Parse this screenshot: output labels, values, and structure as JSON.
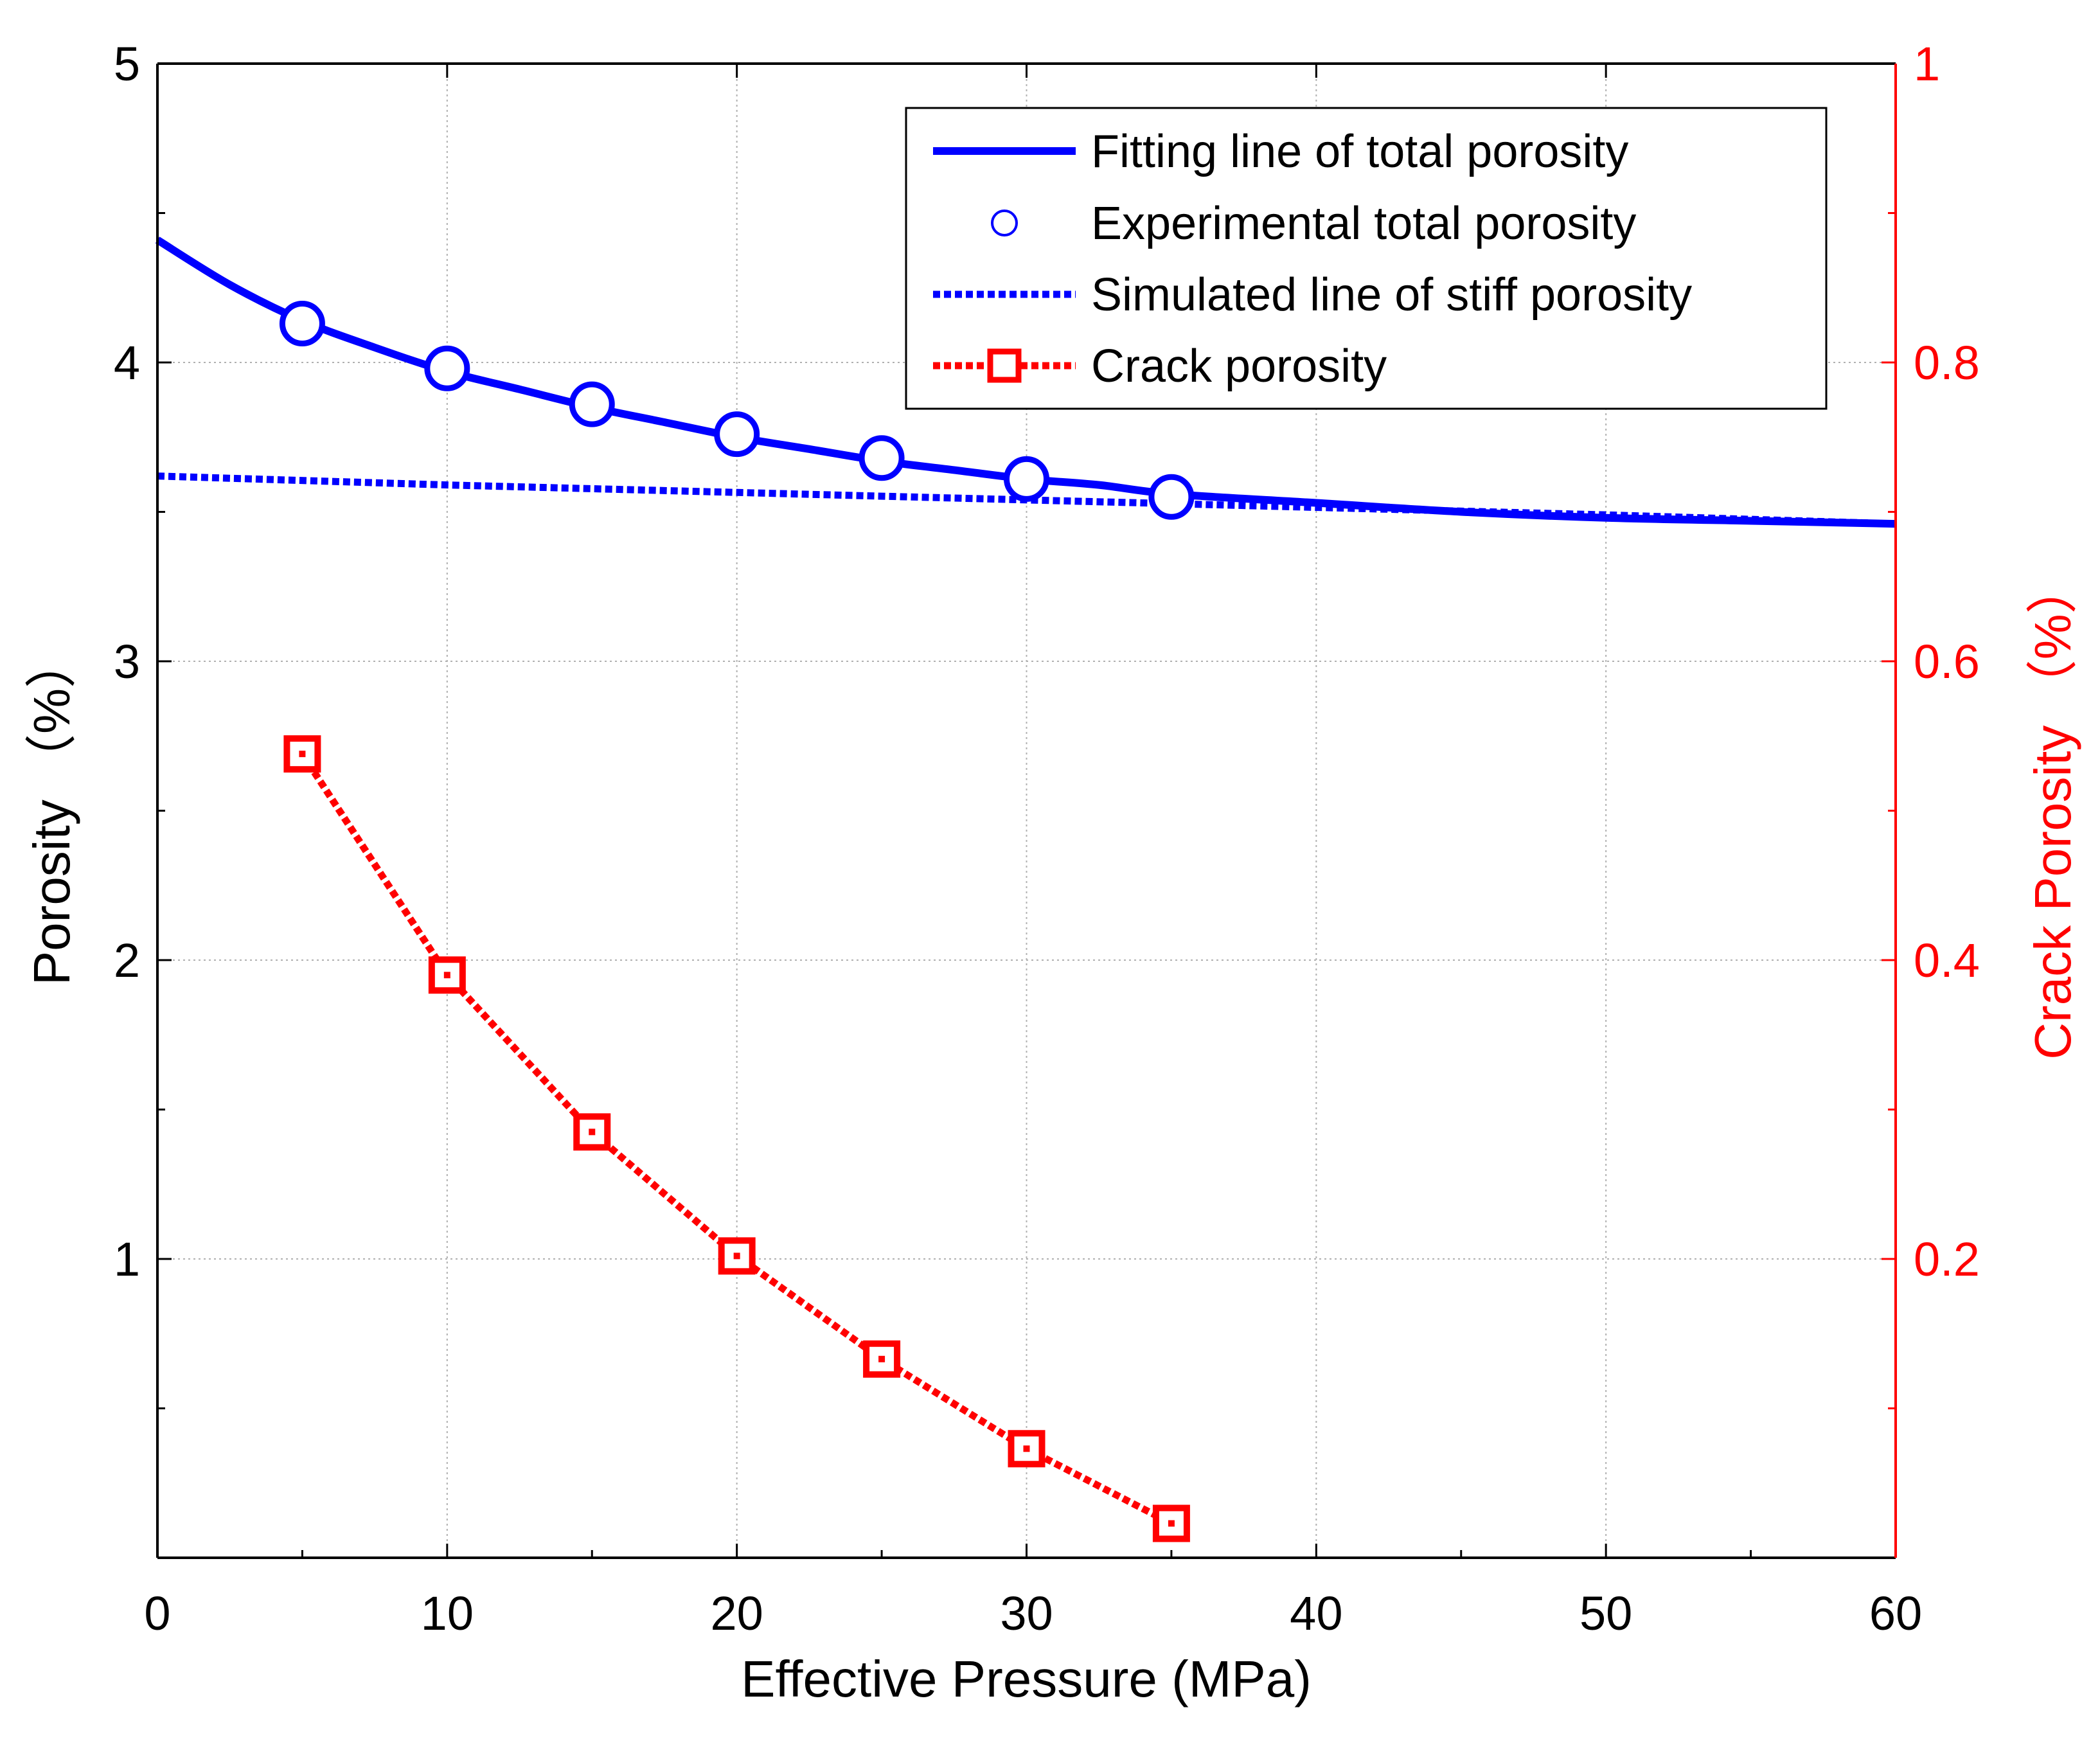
{
  "chart_data": {
    "type": "line",
    "xlabel": "Effective Pressure (MPa)",
    "ylabel": "Porosity （%）",
    "y2label": "Crack Porosity （%）",
    "xlim": [
      0,
      60
    ],
    "ylim": [
      0,
      5
    ],
    "y2lim": [
      0,
      1
    ],
    "grid": true,
    "legend_position": "top-right",
    "xticks": [
      "0",
      "10",
      "20",
      "30",
      "40",
      "50",
      "60"
    ],
    "yticks": [
      "1",
      "2",
      "3",
      "4",
      "5"
    ],
    "y2ticks": [
      "0.2",
      "0.4",
      "0.6",
      "0.8",
      "1"
    ],
    "colors": {
      "total": "#0000ff",
      "crack": "#ff0000",
      "right_axis": "#ff0000",
      "grid": "#b0b0b0"
    },
    "series": [
      {
        "name": "Fitting line of total porosity",
        "style": "solid",
        "axis": "left",
        "x": [
          0,
          2.5,
          5,
          7.5,
          10,
          12.5,
          15,
          17.5,
          20,
          22.5,
          25,
          27.5,
          30,
          32.5,
          35,
          40,
          45,
          50,
          55,
          60
        ],
        "values": [
          4.41,
          4.26,
          4.14,
          4.05,
          3.97,
          3.91,
          3.85,
          3.8,
          3.75,
          3.71,
          3.67,
          3.64,
          3.61,
          3.59,
          3.56,
          3.53,
          3.5,
          3.48,
          3.47,
          3.46
        ]
      },
      {
        "name": "Experimental  total porosity",
        "style": "markers-circle",
        "axis": "left",
        "x": [
          5,
          10,
          15,
          20,
          25,
          30,
          35
        ],
        "values": [
          4.13,
          3.98,
          3.86,
          3.76,
          3.68,
          3.61,
          3.55
        ]
      },
      {
        "name": "Simulated line of stiff porosity",
        "style": "dotted",
        "axis": "left",
        "x": [
          0,
          10,
          20,
          30,
          40,
          50,
          60
        ],
        "values": [
          3.62,
          3.59,
          3.565,
          3.54,
          3.515,
          3.49,
          3.46
        ]
      },
      {
        "name": "Crack porosity",
        "style": "dotted-square",
        "axis": "right",
        "x": [
          5,
          10,
          15,
          20,
          25,
          30,
          35
        ],
        "values": [
          0.538,
          0.39,
          0.285,
          0.202,
          0.133,
          0.073,
          0.023
        ]
      }
    ]
  }
}
